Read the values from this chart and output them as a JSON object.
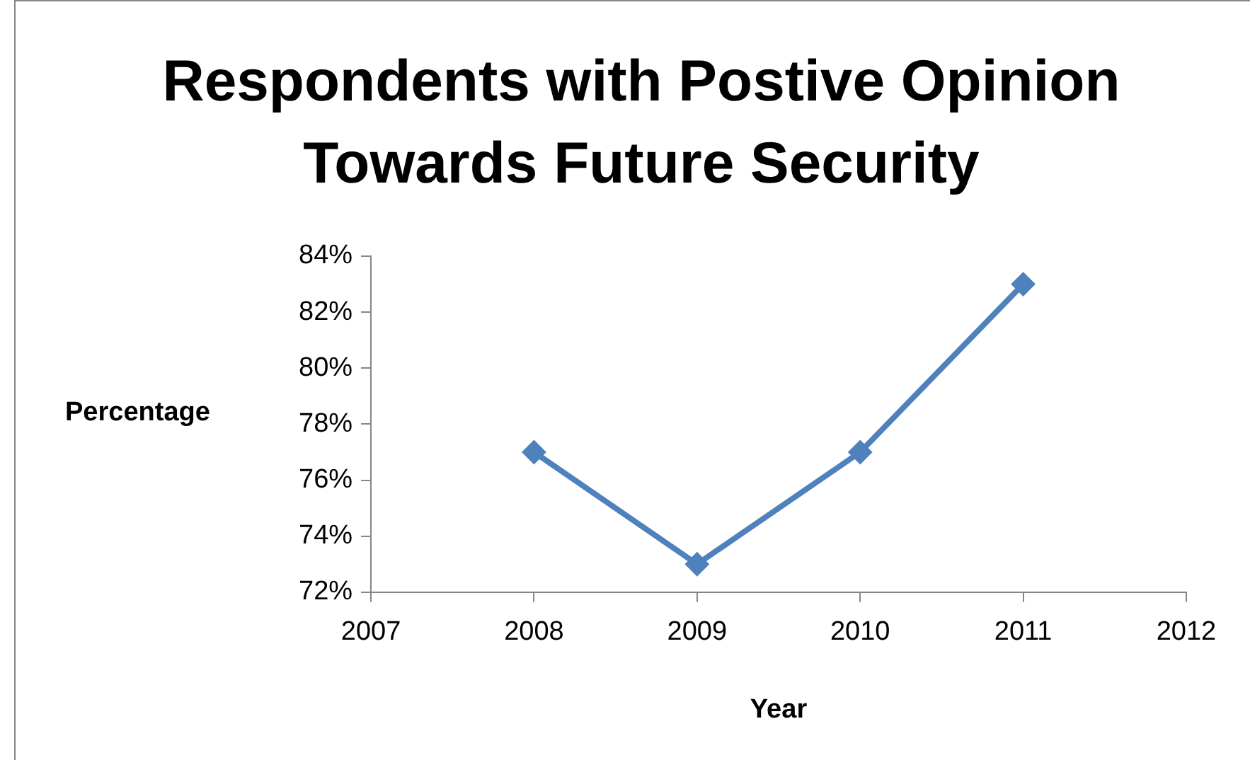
{
  "chart_data": {
    "type": "line",
    "title": "Respondents with Postive Opinion Towards Future Security",
    "xlabel": "Year",
    "ylabel": "Percentage",
    "x": [
      2008,
      2009,
      2010,
      2011
    ],
    "series": [
      {
        "color": "#4f81bd",
        "values": [
          77,
          73,
          77,
          83
        ]
      }
    ],
    "xlim": [
      2007,
      2012
    ],
    "xticks": [
      2007,
      2008,
      2009,
      2010,
      2011,
      2012
    ],
    "ylim": [
      72,
      84
    ],
    "yticks": [
      {
        "value": 72,
        "label": "72%"
      },
      {
        "value": 74,
        "label": "74%"
      },
      {
        "value": 76,
        "label": "76%"
      },
      {
        "value": 78,
        "label": "78%"
      },
      {
        "value": 80,
        "label": "80%"
      },
      {
        "value": 82,
        "label": "82%"
      },
      {
        "value": 84,
        "label": "84%"
      }
    ],
    "grid": false,
    "legend": false,
    "marker": "diamond",
    "line_style": "solid"
  }
}
